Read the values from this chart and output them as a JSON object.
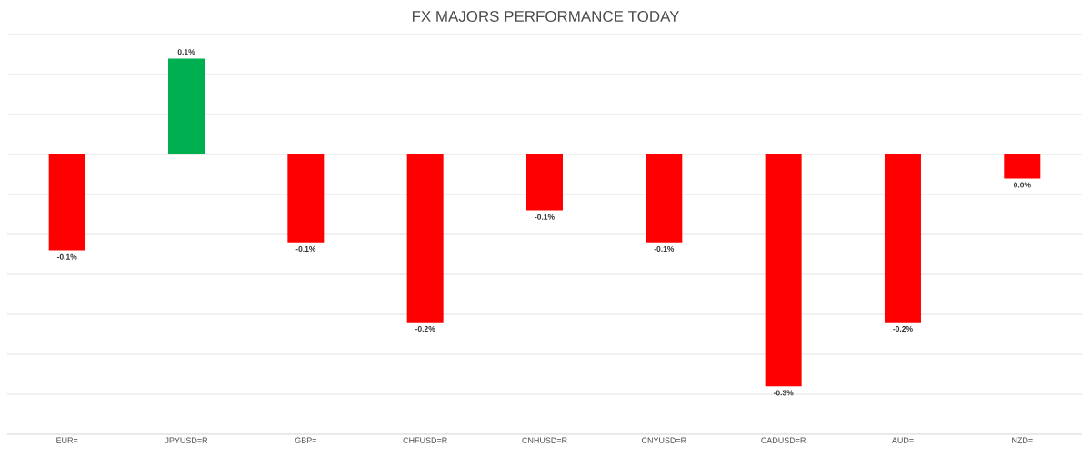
{
  "chart_data": {
    "type": "bar",
    "title": "FX MAJORS PERFORMANCE TODAY",
    "grid": "y",
    "categories": [
      "EUR=",
      "JPYUSD=R",
      "GBP=",
      "CHFUSD=R",
      "CNHUSD=R",
      "CNYUSD=R",
      "CADUSD=R",
      "AUD=",
      "NZD="
    ],
    "values": [
      -0.12,
      0.12,
      -0.11,
      -0.21,
      -0.07,
      -0.11,
      -0.29,
      -0.21,
      -0.03
    ],
    "colors": [
      "#ff0000",
      "#00b050",
      "#ff0000",
      "#ff0000",
      "#ff0000",
      "#ff0000",
      "#ff0000",
      "#ff0000",
      "#ff0000"
    ],
    "value_labels": [
      "-0.1%",
      "0.1%",
      "-0.1%",
      "-0.2%",
      "-0.1%",
      "-0.1%",
      "-0.3%",
      "-0.2%",
      "0.0%"
    ],
    "ylim": [
      -0.35,
      0.15
    ],
    "yticks": [
      {
        "value": -0.35,
        "label": null
      },
      {
        "value": -0.3,
        "label": null
      },
      {
        "value": -0.25,
        "label": null
      },
      {
        "value": -0.2,
        "label": null
      },
      {
        "value": -0.15,
        "label": null
      },
      {
        "value": -0.1,
        "label": null
      },
      {
        "value": -0.05,
        "label": null
      },
      {
        "value": 0,
        "label": null
      },
      {
        "value": 0.05,
        "label": null
      },
      {
        "value": 0.1,
        "label": null
      },
      {
        "value": 0.15,
        "label": null
      }
    ],
    "tick_labels": "x"
  }
}
